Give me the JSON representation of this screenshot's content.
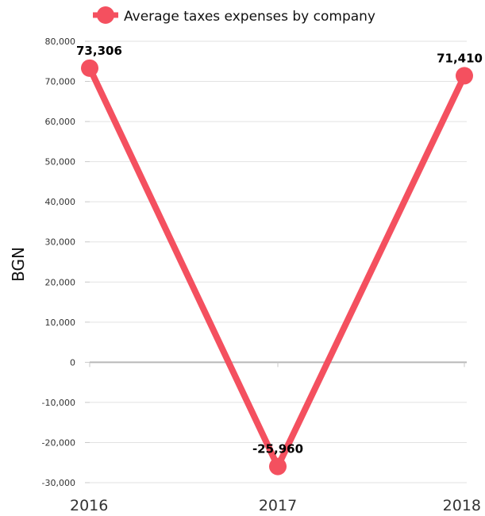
{
  "chart_data": {
    "type": "line",
    "title": "",
    "xlabel": "",
    "ylabel": "BGN",
    "ylim": [
      -30000,
      80000
    ],
    "y_ticks": [
      80000,
      70000,
      60000,
      50000,
      40000,
      30000,
      20000,
      10000,
      0,
      -10000,
      -20000,
      -30000
    ],
    "y_tick_labels": [
      "80,000",
      "70,000",
      "60,000",
      "50,000",
      "40,000",
      "30,000",
      "20,000",
      "10,000",
      "0",
      "-10,000",
      "-20,000",
      "-30,000"
    ],
    "categories": [
      "2016",
      "2017",
      "2018"
    ],
    "grid": true,
    "legend": "top",
    "series": [
      {
        "name": "Average taxes expenses by company",
        "color": "#f4505f",
        "values": [
          73306,
          -25960,
          71410
        ],
        "data_labels": [
          "73,306",
          "-25,960",
          "71,410"
        ]
      }
    ]
  }
}
